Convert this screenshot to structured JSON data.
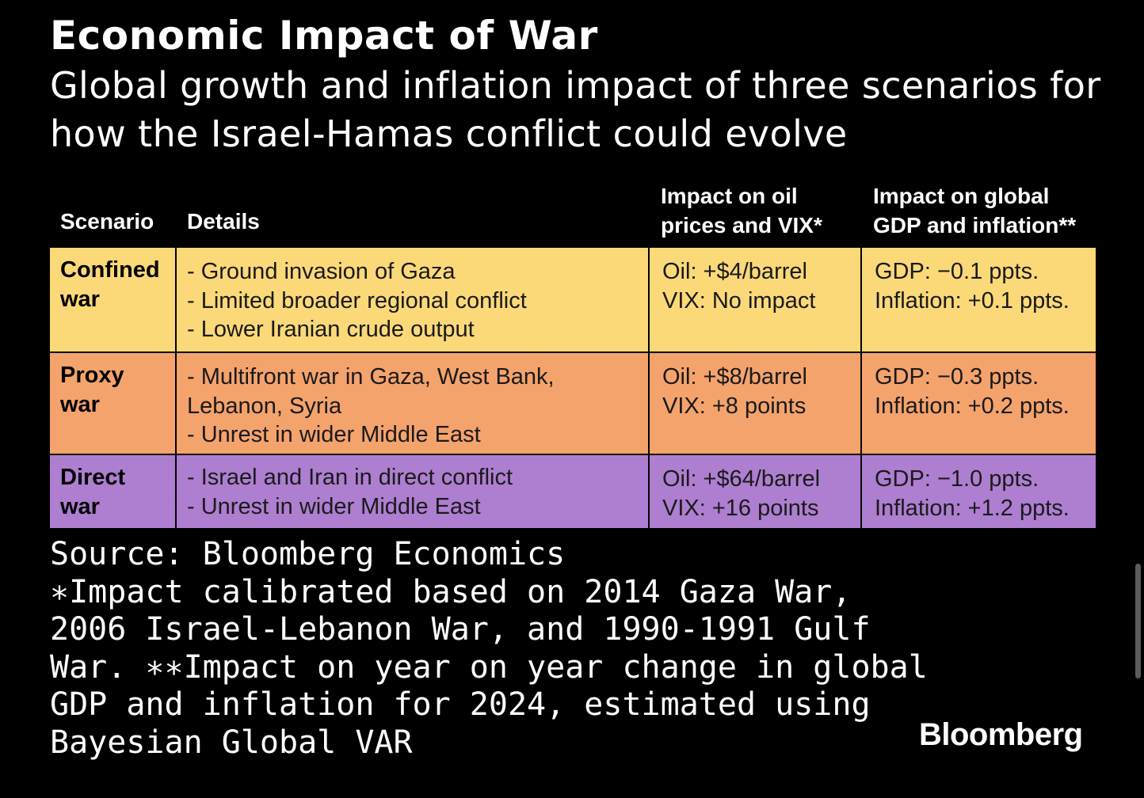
{
  "title": "Economic Impact of War",
  "subtitle": "Global growth and inflation impact of three scenarios for how the Israel-Hamas conflict could evolve",
  "chart_data": {
    "type": "table",
    "columns": [
      [
        "Scenario"
      ],
      [
        "Details"
      ],
      [
        "Impact on oil",
        "prices and VIX*"
      ],
      [
        "Impact on global",
        "GDP and inflation**"
      ]
    ],
    "rows": [
      {
        "scenario": [
          "Confined",
          "war"
        ],
        "details": [
          "- Ground invasion of Gaza",
          "- Limited broader regional conflict",
          "- Lower Iranian crude output"
        ],
        "oil_vix": [
          "Oil: +$4/barrel",
          "VIX: No impact"
        ],
        "gdp_inflation": [
          "GDP: −0.1 ppts.",
          "Inflation: +0.1 ppts."
        ],
        "color": "#fbd979"
      },
      {
        "scenario": [
          "Proxy",
          "war"
        ],
        "details": [
          "- Multifront war in Gaza, West Bank,",
          "Lebanon, Syria",
          "- Unrest in wider Middle East"
        ],
        "oil_vix": [
          "Oil: +$8/barrel",
          "VIX: +8 points"
        ],
        "gdp_inflation": [
          "GDP: −0.3 ppts.",
          "Inflation: +0.2 ppts."
        ],
        "color": "#f4a36d"
      },
      {
        "scenario": [
          "Direct",
          "war"
        ],
        "details": [
          "- Israel and Iran in direct conflict",
          "- Unrest in wider Middle East"
        ],
        "oil_vix": [
          "Oil: +$64/barrel",
          "VIX: +16 points"
        ],
        "gdp_inflation": [
          "GDP: −1.0 ppts.",
          "Inflation: +1.2 ppts."
        ],
        "color": "#ae7ed1"
      }
    ]
  },
  "footer": {
    "lines": [
      "Source: Bloomberg Economics",
      "∗Impact calibrated based on 2014 Gaza War,",
      "2006 Israel-Lebanon War, and 1990-1991 Gulf",
      "War. ∗∗Impact on year on year change in global",
      "GDP and inflation for 2024, estimated using",
      "Bayesian Global VAR"
    ]
  },
  "brand": "Bloomberg"
}
